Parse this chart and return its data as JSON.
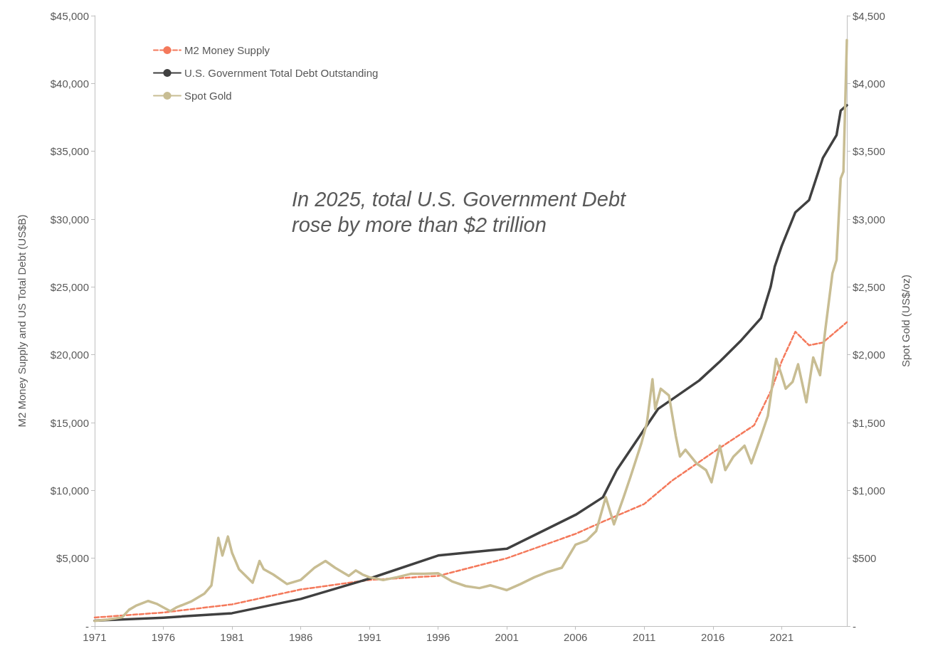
{
  "chart_data": {
    "type": "line",
    "xlabel": null,
    "ylabel": "M2 Money Supply and US Total Debt (US$B)",
    "y2label": "Spot Gold (US$/oz)",
    "annotations": [
      "In 2025, total U.S. Government Debt\nrose by more than $2 trillion"
    ],
    "xlim": [
      1971,
      2025.75
    ],
    "xticks": [
      1971,
      1976,
      1981,
      1986,
      1991,
      1996,
      2001,
      2006,
      2011,
      2016,
      2021
    ],
    "ylim": [
      0,
      45000
    ],
    "yticks": [
      {
        "value": 0,
        "label": "-"
      },
      {
        "value": 5000,
        "label": "$5,000"
      },
      {
        "value": 10000,
        "label": "$10,000"
      },
      {
        "value": 15000,
        "label": "$15,000"
      },
      {
        "value": 20000,
        "label": "$20,000"
      },
      {
        "value": 25000,
        "label": "$25,000"
      },
      {
        "value": 30000,
        "label": "$30,000"
      },
      {
        "value": 35000,
        "label": "$35,000"
      },
      {
        "value": 40000,
        "label": "$40,000"
      },
      {
        "value": 45000,
        "label": "$45,000"
      }
    ],
    "y2lim": [
      0,
      4500
    ],
    "y2ticks": [
      {
        "value": 0,
        "label": "-"
      },
      {
        "value": 500,
        "label": "$500"
      },
      {
        "value": 1000,
        "label": "$1,000"
      },
      {
        "value": 1500,
        "label": "$1,500"
      },
      {
        "value": 2000,
        "label": "$2,000"
      },
      {
        "value": 2500,
        "label": "$2,500"
      },
      {
        "value": 3000,
        "label": "$3,000"
      },
      {
        "value": 3500,
        "label": "$3,500"
      },
      {
        "value": 4000,
        "label": "$4,000"
      },
      {
        "value": 4500,
        "label": "$4,500"
      }
    ],
    "grid": false,
    "legend": "top left",
    "marker": "none",
    "series": [
      {
        "name": "M2 Money Supply",
        "color": "#f4795b",
        "line_style": "dashed",
        "x": [
          1971,
          1976,
          1981,
          1986,
          1991,
          1996,
          2001,
          2006,
          2008,
          2011,
          2013,
          2016,
          2019,
          2020.3,
          2021,
          2022,
          2023,
          2024,
          2025.75
        ],
        "values": [
          630,
          1000,
          1600,
          2700,
          3400,
          3700,
          5000,
          6800,
          7700,
          9000,
          10700,
          12800,
          14800,
          17500,
          19500,
          21700,
          20700,
          20900,
          22400
        ]
      },
      {
        "name": "U.S. Government Total Debt Outstanding",
        "color": "#404040",
        "line_style": "solid",
        "x": [
          1971,
          1976,
          1981,
          1986,
          1991,
          1996,
          2001,
          2006,
          2008,
          2009,
          2011,
          2012,
          2013,
          2015,
          2016.5,
          2018,
          2019.5,
          2020.2,
          2020.5,
          2021,
          2022,
          2023,
          2024,
          2025,
          2025.3,
          2025.75
        ],
        "values": [
          400,
          620,
          950,
          2000,
          3500,
          5200,
          5700,
          8200,
          9500,
          11500,
          14500,
          16000,
          16700,
          18100,
          19500,
          21000,
          22700,
          25000,
          26500,
          28000,
          30500,
          31400,
          34500,
          36200,
          38000,
          38400
        ]
      },
      {
        "name": "Spot Gold",
        "color": "#c8bd93",
        "line_style": "solid",
        "axis": "y2",
        "x": [
          1971,
          1972,
          1973,
          1973.5,
          1974,
          1974.9,
          1975.5,
          1976.5,
          1977,
          1978,
          1979,
          1979.5,
          1980,
          1980.3,
          1980.7,
          1981,
          1981.5,
          1982.5,
          1983,
          1983.3,
          1984,
          1985,
          1986,
          1987,
          1987.8,
          1988.5,
          1989.5,
          1990,
          1990.5,
          1991,
          1992,
          1993,
          1994,
          1995,
          1996,
          1997,
          1998,
          1999,
          1999.8,
          2000.5,
          2001,
          2002,
          2003,
          2004,
          2005,
          2006,
          2006.8,
          2007.5,
          2008.2,
          2008.8,
          2009.5,
          2010,
          2010.8,
          2011.2,
          2011.6,
          2011.8,
          2012.2,
          2012.8,
          2013.3,
          2013.6,
          2014,
          2014.8,
          2015.5,
          2015.9,
          2016.5,
          2016.9,
          2017.5,
          2018.3,
          2018.8,
          2019.5,
          2020,
          2020.6,
          2021,
          2021.3,
          2021.8,
          2022.2,
          2022.8,
          2023.3,
          2023.8,
          2024.2,
          2024.7,
          2025,
          2025.3,
          2025.5,
          2025.75
        ],
        "values": [
          38,
          48,
          65,
          120,
          150,
          185,
          165,
          110,
          140,
          180,
          240,
          300,
          650,
          520,
          660,
          540,
          420,
          320,
          480,
          420,
          380,
          310,
          340,
          430,
          480,
          430,
          370,
          410,
          380,
          360,
          340,
          360,
          385,
          385,
          390,
          330,
          295,
          280,
          300,
          280,
          265,
          310,
          360,
          400,
          430,
          600,
          630,
          700,
          950,
          750,
          950,
          1100,
          1350,
          1500,
          1820,
          1600,
          1750,
          1700,
          1400,
          1250,
          1300,
          1200,
          1150,
          1060,
          1330,
          1150,
          1250,
          1330,
          1200,
          1400,
          1550,
          1970,
          1850,
          1750,
          1800,
          1930,
          1650,
          1980,
          1850,
          2200,
          2600,
          2700,
          3300,
          3350,
          4320
        ]
      }
    ]
  }
}
